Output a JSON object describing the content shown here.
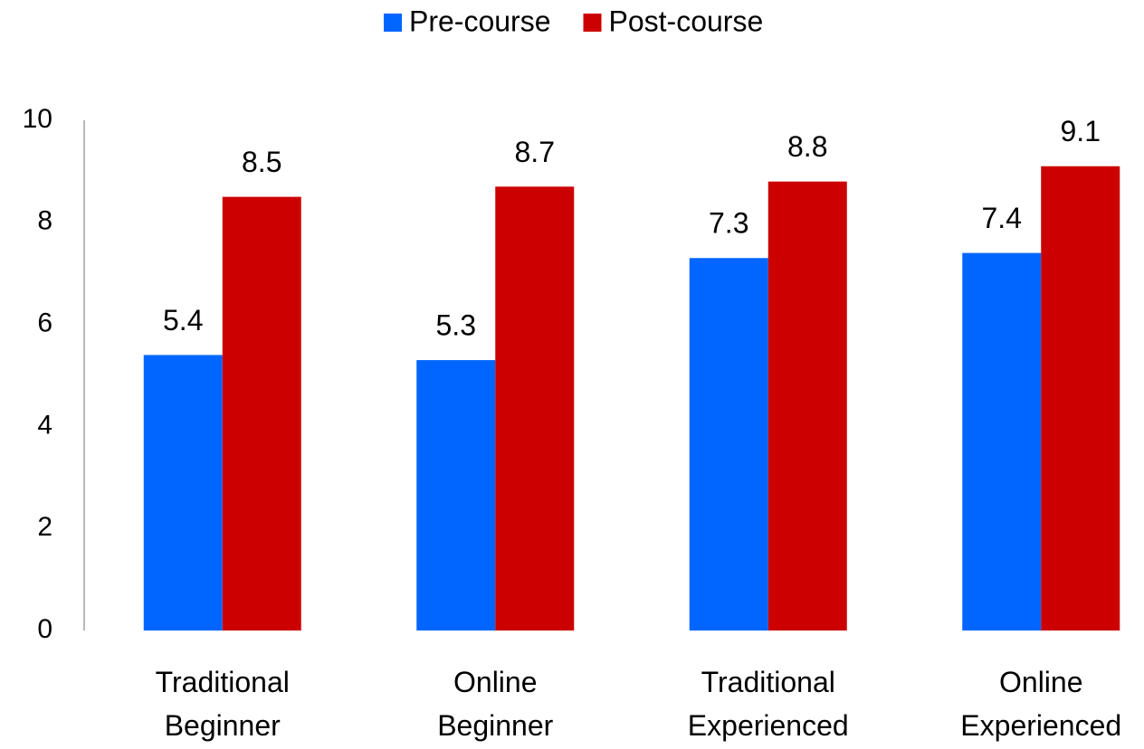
{
  "chart_data": {
    "type": "bar",
    "categories": [
      "Traditional\nBeginner",
      "Online\nBeginner",
      "Traditional\nExperienced",
      "Online\nExperienced"
    ],
    "series": [
      {
        "name": "Pre-course",
        "color": "#0066ff",
        "values": [
          5.4,
          5.3,
          7.3,
          7.4
        ]
      },
      {
        "name": "Post-course",
        "color": "#cc0000",
        "values": [
          8.5,
          8.7,
          8.8,
          9.1
        ]
      }
    ],
    "ylim": [
      0,
      10
    ],
    "yticks": [
      0,
      2,
      4,
      6,
      8,
      10
    ],
    "grid": false,
    "legend": "top"
  }
}
